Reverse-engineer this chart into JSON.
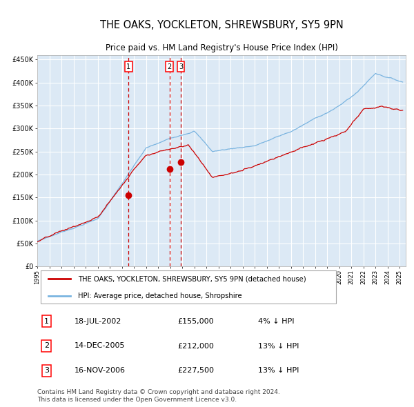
{
  "title": "THE OAKS, YOCKLETON, SHREWSBURY, SY5 9PN",
  "subtitle": "Price paid vs. HM Land Registry's House Price Index (HPI)",
  "legend_line1": "THE OAKS, YOCKLETON, SHREWSBURY, SY5 9PN (detached house)",
  "legend_line2": "HPI: Average price, detached house, Shropshire",
  "transactions": [
    {
      "num": 1,
      "date": "18-JUL-2002",
      "price": 155000,
      "pct": "4%",
      "dir": "↓"
    },
    {
      "num": 2,
      "date": "14-DEC-2005",
      "price": 212000,
      "pct": "13%",
      "dir": "↓"
    },
    {
      "num": 3,
      "date": "16-NOV-2006",
      "price": 227500,
      "pct": "13%",
      "dir": "↓"
    }
  ],
  "sale_dates_decimal": [
    2002.54,
    2005.95,
    2006.88
  ],
  "sale_prices": [
    155000,
    212000,
    227500
  ],
  "ylim": [
    0,
    460000
  ],
  "yticks": [
    0,
    50000,
    100000,
    150000,
    200000,
    250000,
    300000,
    350000,
    400000,
    450000
  ],
  "background_color": "#dce9f5",
  "grid_color": "#ffffff",
  "hpi_color": "#7ab4e0",
  "sale_color": "#cc0000",
  "dashed_line_color": "#cc0000",
  "footer": "Contains HM Land Registry data © Crown copyright and database right 2024.\nThis data is licensed under the Open Government Licence v3.0."
}
